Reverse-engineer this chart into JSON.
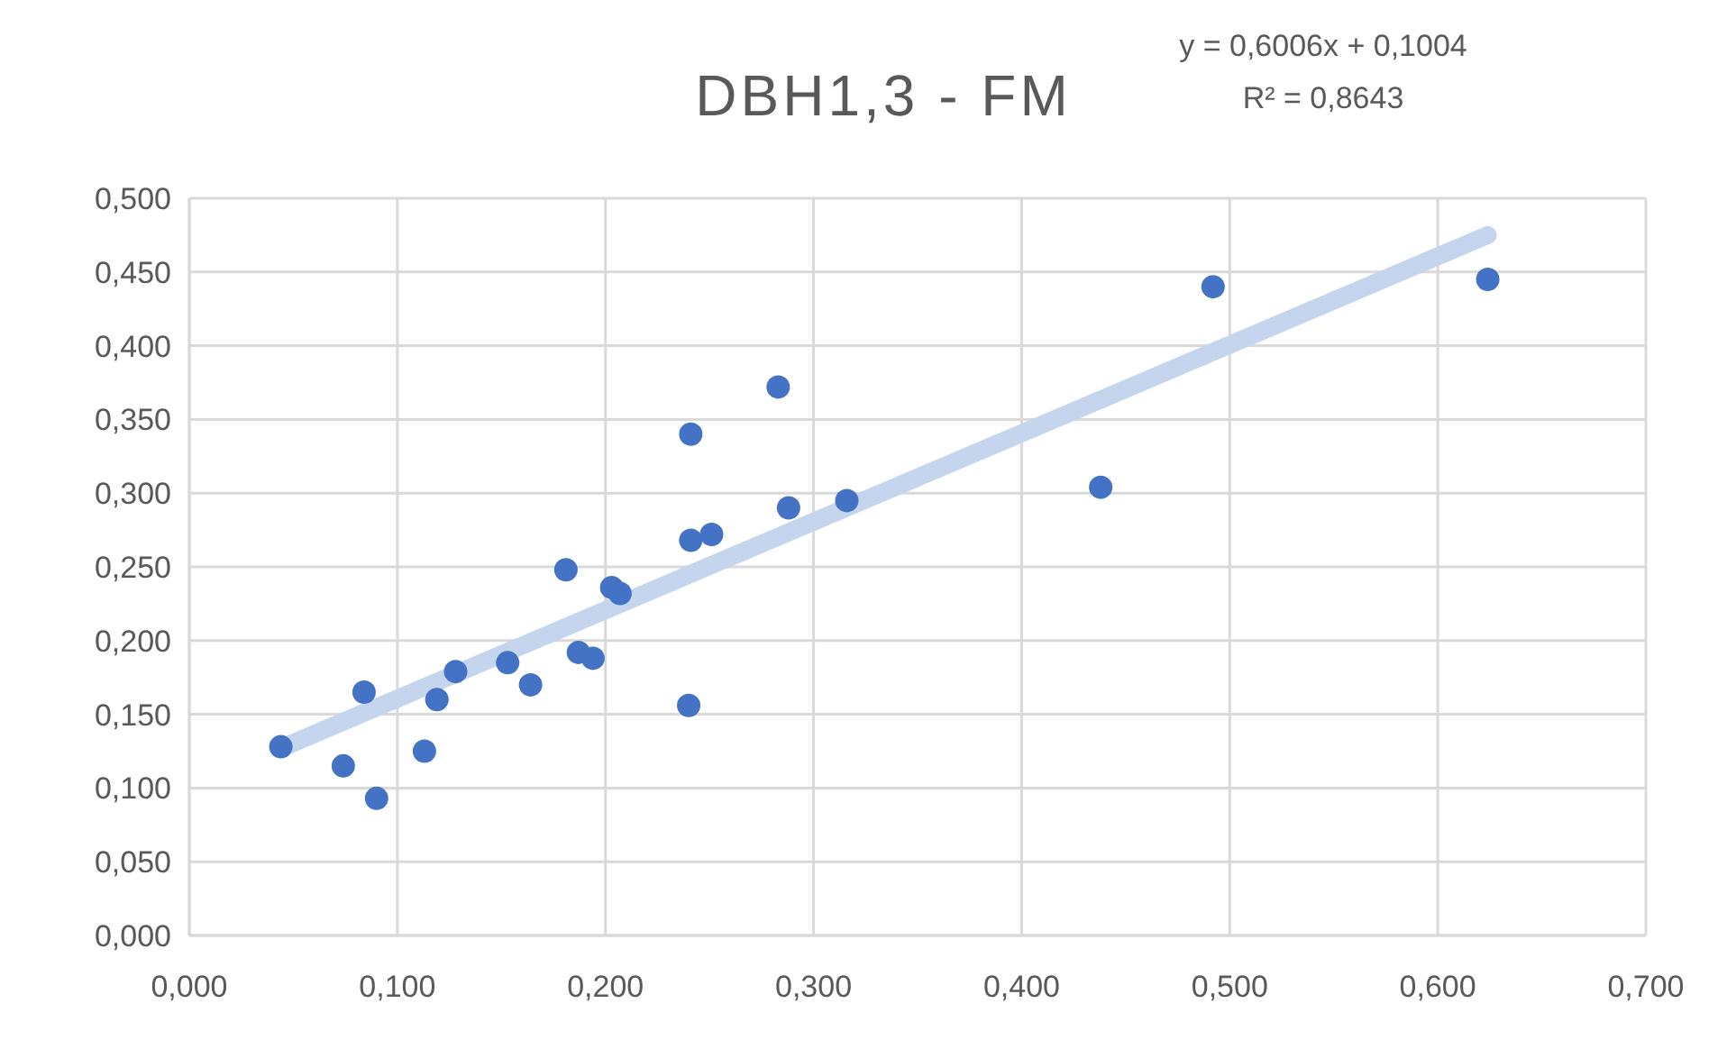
{
  "chart_data": {
    "type": "scatter",
    "title": "DBH1,3 - FM",
    "annotations": [
      "y = 0,6006x + 0,1004",
      "R² = 0,8643"
    ],
    "xlim": [
      0,
      0.7
    ],
    "ylim": [
      0,
      0.5
    ],
    "xticks": [
      {
        "value": 0,
        "label": "0,000"
      },
      {
        "value": 0.1,
        "label": "0,100"
      },
      {
        "value": 0.2,
        "label": "0,200"
      },
      {
        "value": 0.3,
        "label": "0,300"
      },
      {
        "value": 0.4,
        "label": "0,400"
      },
      {
        "value": 0.5,
        "label": "0,500"
      },
      {
        "value": 0.6,
        "label": "0,600"
      },
      {
        "value": 0.7,
        "label": "0,700"
      }
    ],
    "yticks": [
      {
        "value": 0,
        "label": "0,000"
      },
      {
        "value": 0.05,
        "label": "0,050"
      },
      {
        "value": 0.1,
        "label": "0,100"
      },
      {
        "value": 0.15,
        "label": "0,150"
      },
      {
        "value": 0.2,
        "label": "0,200"
      },
      {
        "value": 0.25,
        "label": "0,250"
      },
      {
        "value": 0.3,
        "label": "0,300"
      },
      {
        "value": 0.35,
        "label": "0,350"
      },
      {
        "value": 0.4,
        "label": "0,400"
      },
      {
        "value": 0.45,
        "label": "0,450"
      },
      {
        "value": 0.5,
        "label": "0,500"
      }
    ],
    "grid": true,
    "series": [
      {
        "type": "line",
        "color": "#c5d5ed",
        "line_style": "solid",
        "x": [
          0.044,
          0.624
        ],
        "values": [
          0.127,
          0.475
        ]
      },
      {
        "marker": "circle",
        "color": "#4472c4",
        "x": [
          0.044,
          0.074,
          0.084,
          0.09,
          0.113,
          0.119,
          0.128,
          0.153,
          0.164,
          0.181,
          0.187,
          0.194,
          0.203,
          0.207,
          0.24,
          0.241,
          0.241,
          0.251,
          0.283,
          0.288,
          0.316,
          0.438,
          0.492,
          0.624
        ],
        "values": [
          0.128,
          0.115,
          0.165,
          0.093,
          0.125,
          0.16,
          0.179,
          0.185,
          0.17,
          0.248,
          0.192,
          0.188,
          0.236,
          0.232,
          0.156,
          0.268,
          0.34,
          0.272,
          0.372,
          0.29,
          0.295,
          0.304,
          0.44,
          0.445
        ]
      }
    ]
  }
}
